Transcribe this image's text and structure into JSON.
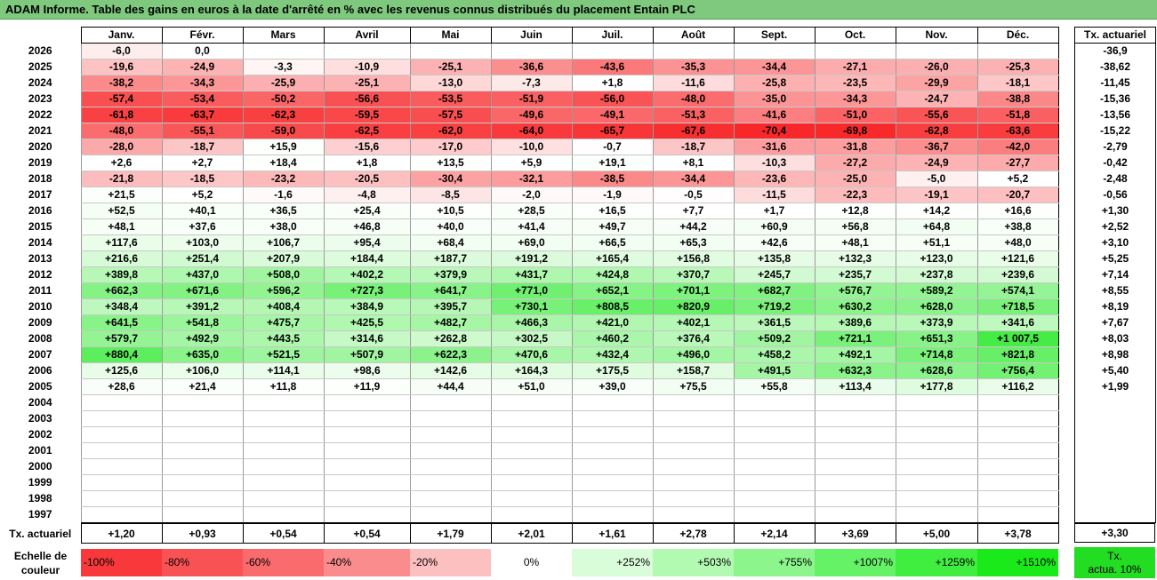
{
  "title": "ADAM Informe. Table des gains en euros à la date d'arrêté en % avec les revenus connus distribués du placement Entain PLC",
  "months": [
    "Janv.",
    "Févr.",
    "Mars",
    "Avril",
    "Mai",
    "Juin",
    "Juil.",
    "Août",
    "Sept.",
    "Oct.",
    "Nov.",
    "Déc."
  ],
  "actu_header": "Tx. actuariel",
  "rows": [
    {
      "year": "2026",
      "vals": [
        "-6,0",
        "0,0",
        "",
        "",
        "",
        "",
        "",
        "",
        "",
        "",
        "",
        ""
      ],
      "actu": "-36,9"
    },
    {
      "year": "2025",
      "vals": [
        "-19,6",
        "-24,9",
        "-3,3",
        "-10,9",
        "-25,1",
        "-36,6",
        "-43,6",
        "-35,3",
        "-34,4",
        "-27,1",
        "-26,0",
        "-25,3"
      ],
      "actu": "-38,62"
    },
    {
      "year": "2024",
      "vals": [
        "-38,2",
        "-34,3",
        "-25,9",
        "-25,1",
        "-13,0",
        "-7,3",
        "+1,8",
        "-11,6",
        "-25,8",
        "-23,5",
        "-29,9",
        "-18,1"
      ],
      "actu": "-11,45"
    },
    {
      "year": "2023",
      "vals": [
        "-57,4",
        "-53,4",
        "-50,2",
        "-56,6",
        "-53,5",
        "-51,9",
        "-56,0",
        "-48,0",
        "-35,0",
        "-34,3",
        "-24,7",
        "-38,8"
      ],
      "actu": "-15,36"
    },
    {
      "year": "2022",
      "vals": [
        "-61,8",
        "-63,7",
        "-62,3",
        "-59,5",
        "-57,5",
        "-49,6",
        "-49,1",
        "-51,3",
        "-41,6",
        "-51,0",
        "-55,6",
        "-51,8"
      ],
      "actu": "-13,56"
    },
    {
      "year": "2021",
      "vals": [
        "-48,0",
        "-55,1",
        "-59,0",
        "-62,5",
        "-62,0",
        "-64,0",
        "-65,7",
        "-67,6",
        "-70,4",
        "-69,8",
        "-62,8",
        "-63,6"
      ],
      "actu": "-15,22"
    },
    {
      "year": "2020",
      "vals": [
        "-28,0",
        "-18,7",
        "+15,9",
        "-15,6",
        "-17,0",
        "-10,0",
        "-0,7",
        "-18,7",
        "-31,6",
        "-31,8",
        "-36,7",
        "-42,0"
      ],
      "actu": "-2,79"
    },
    {
      "year": "2019",
      "vals": [
        "+2,6",
        "+2,7",
        "+18,4",
        "+1,8",
        "+13,5",
        "+5,9",
        "+19,1",
        "+8,1",
        "-10,3",
        "-27,2",
        "-24,9",
        "-27,7"
      ],
      "actu": "-0,42"
    },
    {
      "year": "2018",
      "vals": [
        "-21,8",
        "-18,5",
        "-23,2",
        "-20,5",
        "-30,4",
        "-32,1",
        "-38,5",
        "-34,4",
        "-23,6",
        "-25,0",
        "-5,0",
        "+5,2"
      ],
      "actu": "-2,48"
    },
    {
      "year": "2017",
      "vals": [
        "+21,5",
        "+5,2",
        "-1,6",
        "-4,8",
        "-8,5",
        "-2,0",
        "-1,9",
        "-0,5",
        "-11,5",
        "-22,3",
        "-19,1",
        "-20,7"
      ],
      "actu": "-0,56"
    },
    {
      "year": "2016",
      "vals": [
        "+52,5",
        "+40,1",
        "+36,5",
        "+25,4",
        "+10,5",
        "+28,5",
        "+16,5",
        "+7,7",
        "+1,7",
        "+12,8",
        "+14,2",
        "+16,6"
      ],
      "actu": "+1,30"
    },
    {
      "year": "2015",
      "vals": [
        "+48,1",
        "+37,6",
        "+38,0",
        "+46,8",
        "+40,0",
        "+41,4",
        "+49,7",
        "+44,2",
        "+60,9",
        "+56,8",
        "+64,8",
        "+38,8"
      ],
      "actu": "+2,52"
    },
    {
      "year": "2014",
      "vals": [
        "+117,6",
        "+103,0",
        "+106,7",
        "+95,4",
        "+68,4",
        "+69,0",
        "+66,5",
        "+65,3",
        "+42,6",
        "+48,1",
        "+51,1",
        "+48,0"
      ],
      "actu": "+3,10"
    },
    {
      "year": "2013",
      "vals": [
        "+216,6",
        "+251,4",
        "+207,9",
        "+184,4",
        "+187,7",
        "+191,2",
        "+165,4",
        "+156,8",
        "+135,8",
        "+132,3",
        "+123,0",
        "+121,6"
      ],
      "actu": "+5,25"
    },
    {
      "year": "2012",
      "vals": [
        "+389,8",
        "+437,0",
        "+508,0",
        "+402,2",
        "+379,9",
        "+431,7",
        "+424,8",
        "+370,7",
        "+245,7",
        "+235,7",
        "+237,8",
        "+239,6"
      ],
      "actu": "+7,14"
    },
    {
      "year": "2011",
      "vals": [
        "+662,3",
        "+671,6",
        "+596,2",
        "+727,3",
        "+641,7",
        "+771,0",
        "+652,1",
        "+701,1",
        "+682,7",
        "+576,7",
        "+589,2",
        "+574,1"
      ],
      "actu": "+8,55"
    },
    {
      "year": "2010",
      "vals": [
        "+348,4",
        "+391,2",
        "+408,4",
        "+384,9",
        "+395,7",
        "+730,1",
        "+808,5",
        "+820,9",
        "+719,2",
        "+630,2",
        "+628,0",
        "+718,5"
      ],
      "actu": "+8,19"
    },
    {
      "year": "2009",
      "vals": [
        "+641,5",
        "+541,8",
        "+475,7",
        "+425,5",
        "+482,7",
        "+466,3",
        "+421,0",
        "+402,1",
        "+361,5",
        "+389,6",
        "+373,9",
        "+341,6"
      ],
      "actu": "+7,67"
    },
    {
      "year": "2008",
      "vals": [
        "+579,7",
        "+492,9",
        "+443,5",
        "+314,6",
        "+262,8",
        "+302,5",
        "+460,2",
        "+376,4",
        "+509,2",
        "+721,1",
        "+651,3",
        "+1 007,5"
      ],
      "actu": "+8,03"
    },
    {
      "year": "2007",
      "vals": [
        "+880,4",
        "+635,0",
        "+521,5",
        "+507,9",
        "+622,3",
        "+470,6",
        "+432,4",
        "+496,0",
        "+458,2",
        "+492,1",
        "+714,8",
        "+821,8"
      ],
      "actu": "+8,98"
    },
    {
      "year": "2006",
      "vals": [
        "+125,6",
        "+106,0",
        "+114,1",
        "+98,6",
        "+142,6",
        "+164,3",
        "+175,5",
        "+158,7",
        "+491,5",
        "+632,3",
        "+628,6",
        "+756,4"
      ],
      "actu": "+5,40"
    },
    {
      "year": "2005",
      "vals": [
        "+28,6",
        "+21,4",
        "+11,8",
        "+11,9",
        "+44,4",
        "+51,0",
        "+39,0",
        "+75,5",
        "+55,8",
        "+113,4",
        "+177,8",
        "+116,2"
      ],
      "actu": "+1,99"
    },
    {
      "year": "2004",
      "vals": [
        "",
        "",
        "",
        "",
        "",
        "",
        "",
        "",
        "",
        "",
        "",
        ""
      ],
      "actu": ""
    },
    {
      "year": "2003",
      "vals": [
        "",
        "",
        "",
        "",
        "",
        "",
        "",
        "",
        "",
        "",
        "",
        ""
      ],
      "actu": ""
    },
    {
      "year": "2002",
      "vals": [
        "",
        "",
        "",
        "",
        "",
        "",
        "",
        "",
        "",
        "",
        "",
        ""
      ],
      "actu": ""
    },
    {
      "year": "2001",
      "vals": [
        "",
        "",
        "",
        "",
        "",
        "",
        "",
        "",
        "",
        "",
        "",
        ""
      ],
      "actu": ""
    },
    {
      "year": "2000",
      "vals": [
        "",
        "",
        "",
        "",
        "",
        "",
        "",
        "",
        "",
        "",
        "",
        ""
      ],
      "actu": ""
    },
    {
      "year": "1999",
      "vals": [
        "",
        "",
        "",
        "",
        "",
        "",
        "",
        "",
        "",
        "",
        "",
        ""
      ],
      "actu": ""
    },
    {
      "year": "1998",
      "vals": [
        "",
        "",
        "",
        "",
        "",
        "",
        "",
        "",
        "",
        "",
        "",
        ""
      ],
      "actu": ""
    },
    {
      "year": "1997",
      "vals": [
        "",
        "",
        "",
        "",
        "",
        "",
        "",
        "",
        "",
        "",
        "",
        ""
      ],
      "actu": ""
    }
  ],
  "bottom": {
    "label": "Tx. actuariel",
    "vals": [
      "+1,20",
      "+0,93",
      "+0,54",
      "+0,54",
      "+1,79",
      "+2,01",
      "+1,61",
      "+2,78",
      "+2,14",
      "+3,69",
      "+5,00",
      "+3,78"
    ],
    "total": "+3,30"
  },
  "legend": {
    "label_line1": "Echelle de",
    "label_line2": "couleur",
    "items": [
      {
        "text": "-100%",
        "color": "#f8383a",
        "align": "left"
      },
      {
        "text": "-80%",
        "color": "#f95254",
        "align": "left"
      },
      {
        "text": "-60%",
        "color": "#fa6b6d",
        "align": "left"
      },
      {
        "text": "-40%",
        "color": "#fb8c8e",
        "align": "left"
      },
      {
        "text": "-20%",
        "color": "#fdc0c1",
        "align": "left"
      },
      {
        "text": "0%",
        "color": "#ffffff",
        "align": "center"
      },
      {
        "text": "+252%",
        "color": "#d9fcd9",
        "align": "right"
      },
      {
        "text": "+503%",
        "color": "#b2f9b2",
        "align": "right"
      },
      {
        "text": "+755%",
        "color": "#8cf68c",
        "align": "right"
      },
      {
        "text": "+1007%",
        "color": "#66f266",
        "align": "right"
      },
      {
        "text": "+1259%",
        "color": "#40ee40",
        "align": "right"
      },
      {
        "text": "+1510%",
        "color": "#1aea1a",
        "align": "right"
      }
    ],
    "actu_line1": "Tx.",
    "actu_line2": "actua. 10%",
    "actu_color": "#22dd22"
  }
}
